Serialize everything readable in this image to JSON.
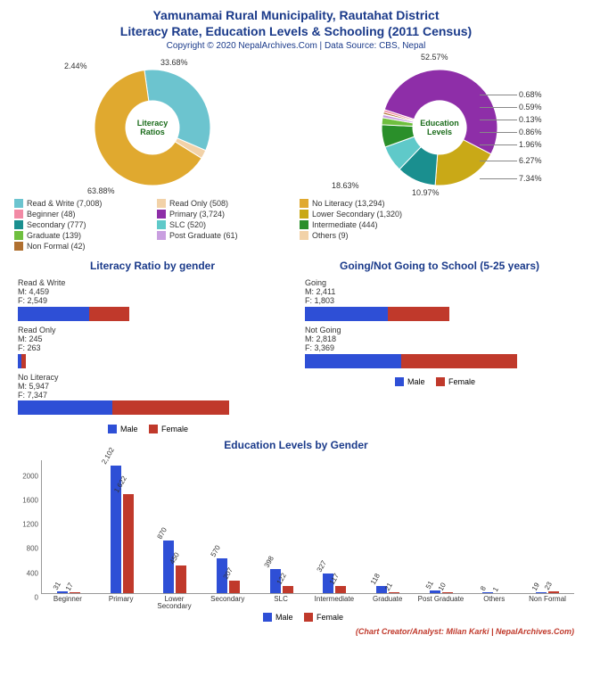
{
  "header": {
    "title_line1": "Yamunamai Rural Municipality, Rautahat District",
    "title_line2": "Literacy Rate, Education Levels & Schooling (2011 Census)",
    "subtitle": "Copyright © 2020 NepalArchives.Com | Data Source: CBS, Nepal",
    "credit": "(Chart Creator/Analyst: Milan Karki | NepalArchives.Com)"
  },
  "colors": {
    "male": "#2e4fd6",
    "female": "#c0392b",
    "title": "#1a3a8a",
    "center_text": "#1a6b1a",
    "bg": "#ffffff"
  },
  "donut1": {
    "center_label": "Literacy\nRatios",
    "radius_outer": 65,
    "radius_inner": 30,
    "slices": [
      {
        "label": "Read & Write",
        "count": 7008,
        "pct": 33.68,
        "color": "#6cc4cf"
      },
      {
        "label": "Read Only",
        "count": 508,
        "pct": 2.44,
        "color": "#f2d2a8"
      },
      {
        "label": "No Literacy",
        "count": 13294,
        "pct": 63.88,
        "color": "#e0a92f"
      }
    ],
    "legend_order": [
      0,
      1
    ]
  },
  "donut2": {
    "center_label": "Education\nLevels",
    "radius_outer": 65,
    "radius_inner": 30,
    "slices": [
      {
        "label": "Primary",
        "count": 3724,
        "pct": 52.57,
        "color": "#8e2ea8"
      },
      {
        "label": "Lower Secondary",
        "count": 1320,
        "pct": 18.63,
        "color": "#c9a917"
      },
      {
        "label": "Secondary",
        "count": 777,
        "pct": 10.97,
        "color": "#1a8f8f"
      },
      {
        "label": "SLC",
        "count": 520,
        "pct": 7.34,
        "color": "#5fc9c9"
      },
      {
        "label": "Intermediate",
        "count": 444,
        "pct": 6.27,
        "color": "#2a8f2a"
      },
      {
        "label": "Graduate",
        "count": 139,
        "pct": 1.96,
        "color": "#6fbf3f"
      },
      {
        "label": "Post Graduate",
        "count": 61,
        "pct": 0.86,
        "color": "#c99fe0"
      },
      {
        "label": "Others",
        "count": 9,
        "pct": 0.13,
        "color": "#f2d2a8"
      },
      {
        "label": "Non Formal",
        "count": 42,
        "pct": 0.59,
        "color": "#b07030"
      },
      {
        "label": "Beginner",
        "count": 48,
        "pct": 0.68,
        "color": "#f28aa5"
      }
    ],
    "label_lines_right": [
      {
        "pct": "0.68%"
      },
      {
        "pct": "0.59%"
      },
      {
        "pct": "0.13%"
      },
      {
        "pct": "0.86%"
      },
      {
        "pct": "1.96%"
      },
      {
        "pct": "6.27%"
      },
      {
        "pct": "7.34%"
      }
    ]
  },
  "legend_combined": [
    {
      "label": "Read & Write (7,008)",
      "color": "#6cc4cf"
    },
    {
      "label": "Read Only (508)",
      "color": "#f2d2a8"
    },
    {
      "label": "No Literacy (13,294)",
      "color": "#e0a92f"
    },
    {
      "label": "Beginner (48)",
      "color": "#f28aa5"
    },
    {
      "label": "Primary (3,724)",
      "color": "#8e2ea8"
    },
    {
      "label": "Lower Secondary (1,320)",
      "color": "#c9a917"
    },
    {
      "label": "Secondary (777)",
      "color": "#1a8f8f"
    },
    {
      "label": "SLC (520)",
      "color": "#5fc9c9"
    },
    {
      "label": "Intermediate (444)",
      "color": "#2a8f2a"
    },
    {
      "label": "Graduate (139)",
      "color": "#6fbf3f"
    },
    {
      "label": "Post Graduate (61)",
      "color": "#c99fe0"
    },
    {
      "label": "Others (9)",
      "color": "#f2d2a8"
    },
    {
      "label": "Non Formal (42)",
      "color": "#b07030"
    }
  ],
  "hbar_left": {
    "title": "Literacy Ratio by gender",
    "max": 14000,
    "rows": [
      {
        "name": "Read & Write",
        "m": 4459,
        "f": 2549
      },
      {
        "name": "Read Only",
        "m": 245,
        "f": 263
      },
      {
        "name": "No Literacy",
        "m": 5947,
        "f": 7347
      }
    ]
  },
  "hbar_right": {
    "title": "Going/Not Going to School (5-25 years)",
    "max": 6500,
    "rows": [
      {
        "name": "Going",
        "m": 2411,
        "f": 1803
      },
      {
        "name": "Not Going",
        "m": 2818,
        "f": 3369
      }
    ]
  },
  "vbar": {
    "title": "Education Levels by Gender",
    "ymax": 2200,
    "yticks": [
      0,
      400,
      800,
      1200,
      1600,
      2000
    ],
    "categories": [
      "Beginner",
      "Primary",
      "Lower Secondary",
      "Secondary",
      "SLC",
      "Intermediate",
      "Graduate",
      "Post Graduate",
      "Others",
      "Non Formal"
    ],
    "male": [
      31,
      2102,
      870,
      570,
      398,
      327,
      118,
      51,
      8,
      19
    ],
    "female": [
      17,
      1622,
      450,
      207,
      122,
      117,
      21,
      10,
      1,
      23
    ]
  },
  "mini_legend": {
    "male": "Male",
    "female": "Female"
  }
}
